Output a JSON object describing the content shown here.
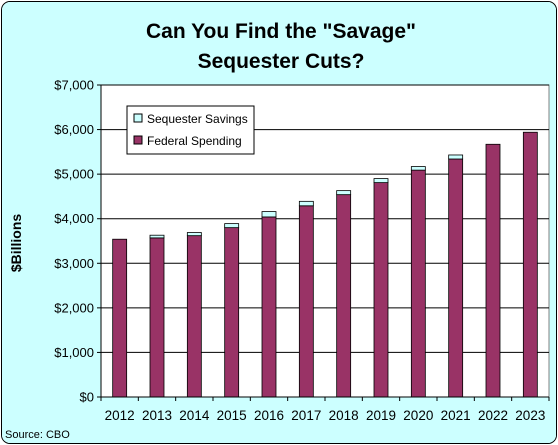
{
  "chart_data": {
    "type": "bar",
    "stacked": true,
    "title_lines": [
      "Can You Find the \"Savage\"",
      "Sequester Cuts?"
    ],
    "xlabel": "",
    "ylabel": "$Billions",
    "ylim": [
      0,
      7000
    ],
    "y_ticks": [
      "$0",
      "$1,000",
      "$2,000",
      "$3,000",
      "$4,000",
      "$5,000",
      "$6,000",
      "$7,000"
    ],
    "y_tick_values": [
      0,
      1000,
      2000,
      3000,
      4000,
      5000,
      6000,
      7000
    ],
    "categories": [
      "2012",
      "2013",
      "2014",
      "2015",
      "2016",
      "2017",
      "2018",
      "2019",
      "2020",
      "2021",
      "2022",
      "2023"
    ],
    "series": [
      {
        "name": "Federal Spending",
        "color": "#993366",
        "values": [
          3540,
          3570,
          3620,
          3800,
          4040,
          4290,
          4540,
          4810,
          5090,
          5340,
          5670,
          5940
        ]
      },
      {
        "name": "Sequester Savings",
        "color": "#CCFFFF",
        "values": [
          0,
          60,
          70,
          90,
          120,
          100,
          90,
          90,
          80,
          90,
          0,
          0
        ]
      }
    ],
    "legend": {
      "position": "top-left",
      "entries": [
        "Sequester Savings",
        "Federal Spending"
      ]
    },
    "grid": true,
    "source_note": "Source: CBO",
    "colors": {
      "background": "#CCFFFF",
      "plot_area": "#FFFFFF",
      "spending": "#993366",
      "savings": "#CCFFFF"
    }
  }
}
